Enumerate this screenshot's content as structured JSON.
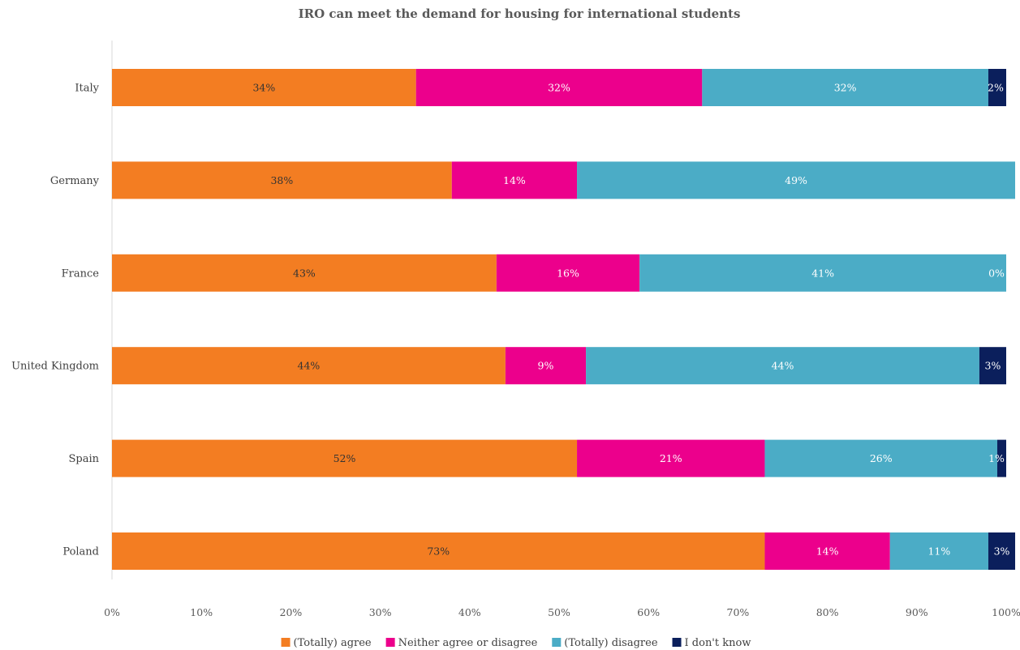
{
  "chart_data": {
    "type": "bar",
    "orientation": "horizontal",
    "stacked": true,
    "title": "IRO can meet the demand for housing for international students",
    "categories": [
      "Italy",
      "Germany",
      "France",
      "United Kingdom",
      "Spain",
      "Poland"
    ],
    "series": [
      {
        "name": "(Totally) agree",
        "color": "#F37D22",
        "label_color": "#333333",
        "values": [
          34,
          38,
          43,
          44,
          52,
          73
        ]
      },
      {
        "name": "Neither agree or disagree",
        "color": "#EC008C",
        "label_color": "#ffffff",
        "values": [
          32,
          14,
          16,
          9,
          21,
          14
        ]
      },
      {
        "name": "(Totally) disagree",
        "color": "#4BACC6",
        "label_color": "#ffffff",
        "values": [
          32,
          49,
          41,
          44,
          26,
          11
        ]
      },
      {
        "name": "I don't know",
        "color": "#0B1F5C",
        "label_color": "#ffffff",
        "values": [
          2,
          0,
          0,
          3,
          1,
          3
        ]
      }
    ],
    "data_labels": [
      [
        "34%",
        "38%",
        "43%",
        "44%",
        "52%",
        "73%"
      ],
      [
        "32%",
        "14%",
        "16%",
        "9%",
        "21%",
        "14%"
      ],
      [
        "32%",
        "49%",
        "41%",
        "44%",
        "26%",
        "11%"
      ],
      [
        "2%",
        "",
        "0%",
        "3%",
        "1%",
        "3%"
      ]
    ],
    "xlim": [
      0,
      100
    ],
    "xticks": [
      "0%",
      "10%",
      "20%",
      "30%",
      "40%",
      "50%",
      "60%",
      "70%",
      "80%",
      "90%",
      "100%"
    ],
    "grid": false,
    "legend": "bottom"
  }
}
